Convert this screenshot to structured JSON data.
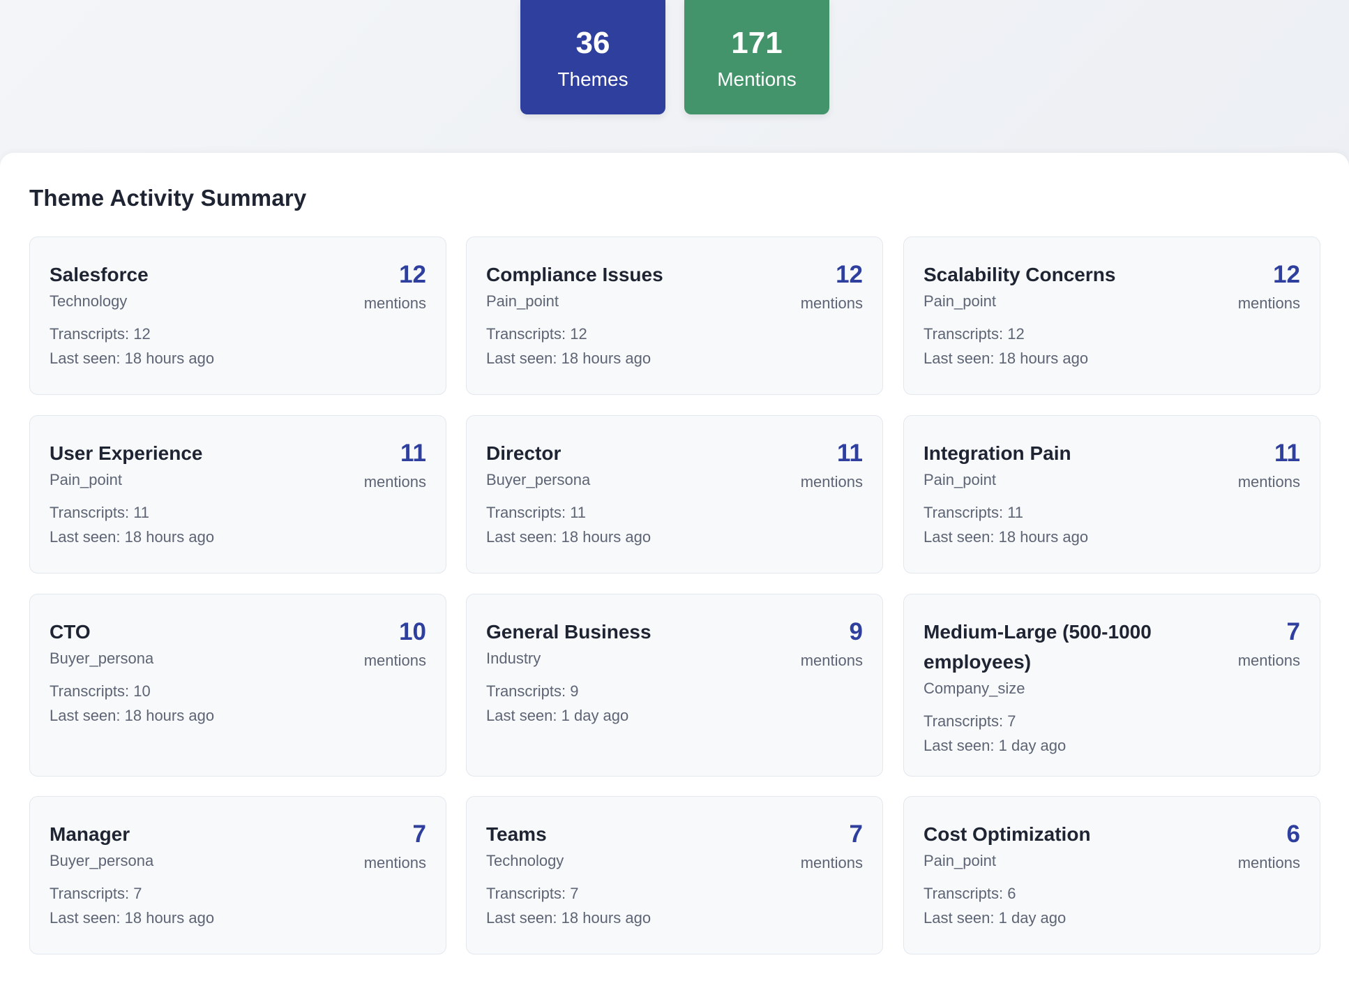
{
  "stats": {
    "themes": {
      "value": "36",
      "label": "Themes",
      "color": "#2f3f9e"
    },
    "mentions": {
      "value": "171",
      "label": "Mentions",
      "color": "#43946a"
    }
  },
  "summary": {
    "title": "Theme Activity Summary",
    "mentions_label": "mentions",
    "cards": [
      {
        "name": "Salesforce",
        "category": "Technology",
        "count": "12",
        "transcripts": "Transcripts: 12",
        "last_seen": "Last seen: 18 hours ago"
      },
      {
        "name": "Compliance Issues",
        "category": "Pain_point",
        "count": "12",
        "transcripts": "Transcripts: 12",
        "last_seen": "Last seen: 18 hours ago"
      },
      {
        "name": "Scalability Concerns",
        "category": "Pain_point",
        "count": "12",
        "transcripts": "Transcripts: 12",
        "last_seen": "Last seen: 18 hours ago"
      },
      {
        "name": "User Experience",
        "category": "Pain_point",
        "count": "11",
        "transcripts": "Transcripts: 11",
        "last_seen": "Last seen: 18 hours ago"
      },
      {
        "name": "Director",
        "category": "Buyer_persona",
        "count": "11",
        "transcripts": "Transcripts: 11",
        "last_seen": "Last seen: 18 hours ago"
      },
      {
        "name": "Integration Pain",
        "category": "Pain_point",
        "count": "11",
        "transcripts": "Transcripts: 11",
        "last_seen": "Last seen: 18 hours ago"
      },
      {
        "name": "CTO",
        "category": "Buyer_persona",
        "count": "10",
        "transcripts": "Transcripts: 10",
        "last_seen": "Last seen: 18 hours ago"
      },
      {
        "name": "General Business",
        "category": "Industry",
        "count": "9",
        "transcripts": "Transcripts: 9",
        "last_seen": "Last seen: 1 day ago"
      },
      {
        "name": "Medium-Large (500-1000 employees)",
        "category": "Company_size",
        "count": "7",
        "transcripts": "Transcripts: 7",
        "last_seen": "Last seen: 1 day ago"
      },
      {
        "name": "Manager",
        "category": "Buyer_persona",
        "count": "7",
        "transcripts": "Transcripts: 7",
        "last_seen": "Last seen: 18 hours ago"
      },
      {
        "name": "Teams",
        "category": "Technology",
        "count": "7",
        "transcripts": "Transcripts: 7",
        "last_seen": "Last seen: 18 hours ago"
      },
      {
        "name": "Cost Optimization",
        "category": "Pain_point",
        "count": "6",
        "transcripts": "Transcripts: 6",
        "last_seen": "Last seen: 1 day ago"
      }
    ]
  }
}
